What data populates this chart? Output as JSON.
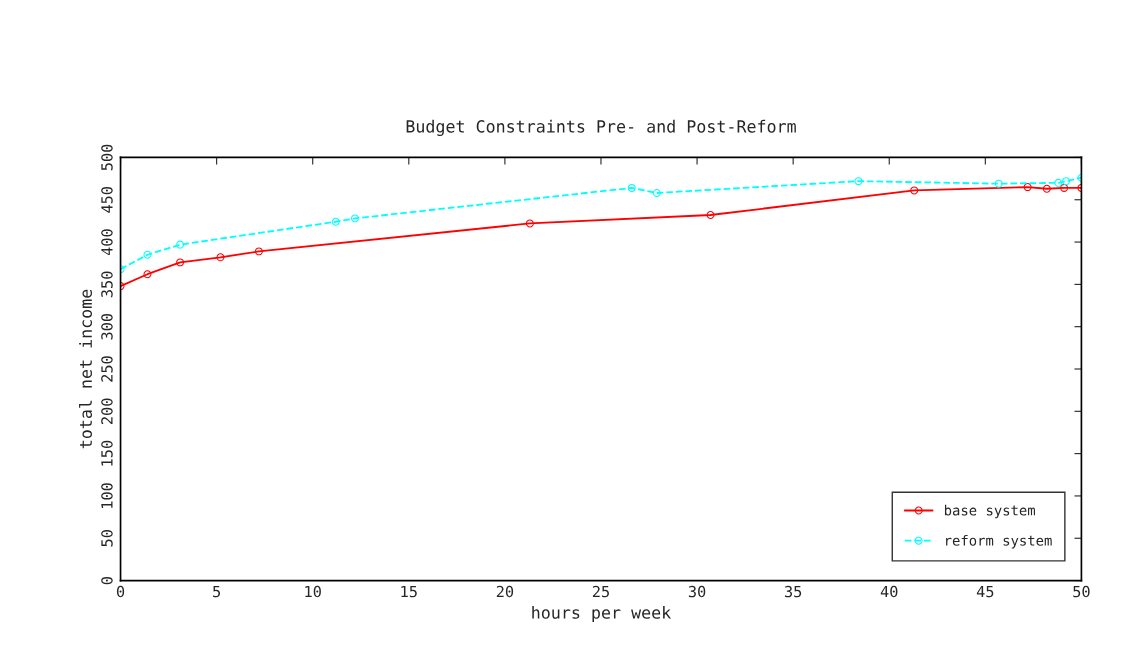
{
  "chart_data": {
    "type": "line",
    "title": "Budget Constraints Pre- and Post-Reform",
    "xlabel": "hours per week",
    "ylabel": "total net income",
    "xlim": [
      0,
      50
    ],
    "xticks": [
      0,
      5,
      10,
      15,
      20,
      25,
      30,
      35,
      40,
      45,
      50
    ],
    "ylim": [
      0,
      500
    ],
    "yticks": [
      0,
      50,
      100,
      150,
      200,
      250,
      300,
      350,
      400,
      450,
      500
    ],
    "grid": false,
    "legend": "bottom right",
    "marker": "circle",
    "series": [
      {
        "name": "base system",
        "color": "#ff0000",
        "line_style": "solid",
        "x": [
          0,
          1.4,
          3.1,
          5.2,
          7.2,
          21.3,
          30.7,
          41.3,
          47.2,
          48.2,
          49.1,
          50
        ],
        "values": [
          348,
          362,
          376,
          382,
          389,
          422,
          432,
          461,
          465,
          463,
          464,
          464
        ]
      },
      {
        "name": "reform system",
        "color": "#00ffff",
        "line_style": "dashed",
        "x": [
          0,
          1.4,
          3.1,
          11.2,
          12.2,
          26.6,
          27.9,
          38.4,
          45.7,
          48.8,
          49.2,
          50
        ],
        "values": [
          368,
          385,
          397,
          424,
          428,
          464,
          458,
          472,
          469,
          470,
          472,
          476
        ]
      }
    ]
  }
}
